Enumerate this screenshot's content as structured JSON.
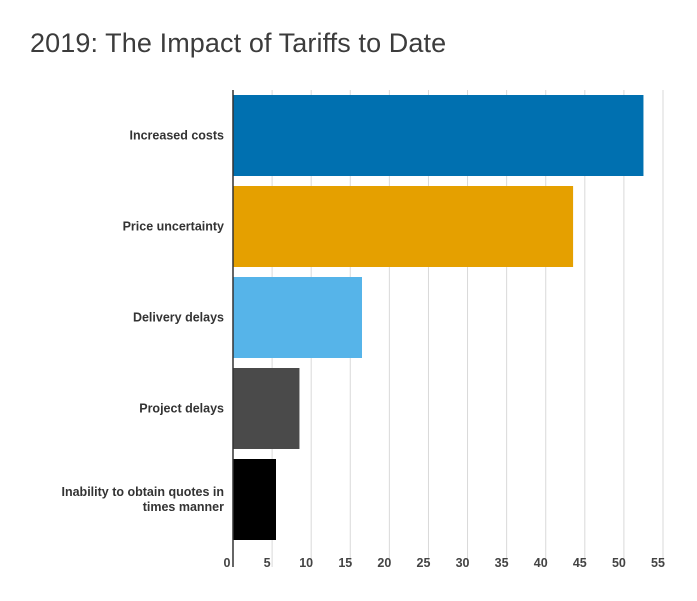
{
  "chart_data": {
    "type": "bar",
    "orientation": "horizontal",
    "title": "2019: The Impact of Tariffs to Date",
    "categories": [
      "Increased costs",
      "Price uncertainty",
      "Delivery delays",
      "Project delays",
      "Inability to obtain quotes in times manner"
    ],
    "values": [
      52.5,
      43.5,
      16.5,
      8.5,
      5.5
    ],
    "colors": [
      "#0070b0",
      "#e5a000",
      "#56b4e9",
      "#4a4a4a",
      "#000000"
    ],
    "xlim": [
      0,
      55
    ],
    "xticks": [
      0,
      5,
      10,
      15,
      20,
      25,
      30,
      35,
      40,
      45,
      50,
      55
    ],
    "grid": true,
    "legend": "none",
    "xlabel": "",
    "ylabel": ""
  }
}
